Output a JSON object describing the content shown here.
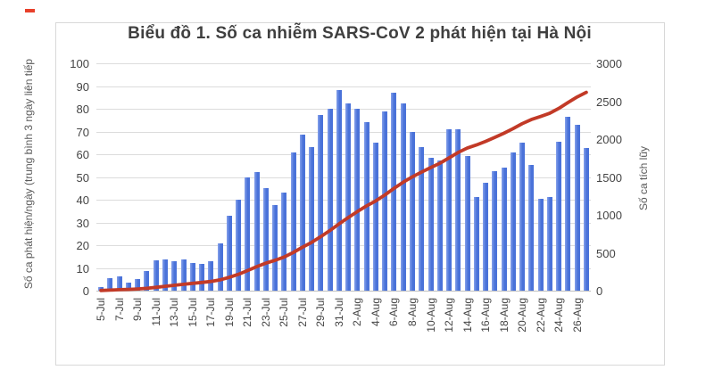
{
  "page": {
    "background": "#ffffff",
    "artifact_color": "#e8402a"
  },
  "chart_data": {
    "type": "combo",
    "title": "Biểu đồ 1. Số ca nhiễm SARS-CoV 2 phát hiện tại Hà Nội",
    "categories": [
      "5-Jul",
      "6-Jul",
      "7-Jul",
      "8-Jul",
      "9-Jul",
      "10-Jul",
      "11-Jul",
      "12-Jul",
      "13-Jul",
      "14-Jul",
      "15-Jul",
      "16-Jul",
      "17-Jul",
      "18-Jul",
      "19-Jul",
      "20-Jul",
      "21-Jul",
      "22-Jul",
      "23-Jul",
      "24-Jul",
      "25-Jul",
      "26-Jul",
      "27-Jul",
      "28-Jul",
      "29-Jul",
      "30-Jul",
      "31-Jul",
      "1-Aug",
      "2-Aug",
      "3-Aug",
      "4-Aug",
      "5-Aug",
      "6-Aug",
      "7-Aug",
      "8-Aug",
      "9-Aug",
      "10-Aug",
      "11-Aug",
      "12-Aug",
      "13-Aug",
      "14-Aug",
      "15-Aug",
      "16-Aug",
      "17-Aug",
      "18-Aug",
      "19-Aug",
      "20-Aug",
      "21-Aug",
      "22-Aug",
      "23-Aug",
      "24-Aug",
      "25-Aug",
      "26-Aug",
      "27-Aug"
    ],
    "x_tick_labels": [
      "5-Jul",
      "7-Jul",
      "9-Jul",
      "11-Jul",
      "13-Jul",
      "15-Jul",
      "17-Jul",
      "19-Jul",
      "21-Jul",
      "23-Jul",
      "25-Jul",
      "27-Jul",
      "29-Jul",
      "31-Jul",
      "2-Aug",
      "4-Aug",
      "6-Aug",
      "8-Aug",
      "10-Aug",
      "12-Aug",
      "14-Aug",
      "16-Aug",
      "18-Aug",
      "20-Aug",
      "22-Aug",
      "24-Aug",
      "26-Aug"
    ],
    "x_tick_every": 2,
    "series": [
      {
        "name": "Số ca phát hiện/ngày",
        "type": "bar",
        "axis": "left",
        "color": "#4a72d9",
        "highlight": "#86a1eb",
        "values": [
          1.5,
          5.5,
          6.3,
          3.7,
          5.0,
          8.7,
          13.3,
          13.7,
          13.0,
          13.7,
          12.0,
          11.7,
          13.0,
          20.7,
          33.0,
          40.0,
          50.0,
          52.3,
          45.3,
          37.7,
          43.3,
          60.7,
          68.7,
          63.0,
          77.3,
          80.0,
          88.3,
          82.3,
          80.0,
          74.3,
          65.3,
          78.7,
          87.0,
          82.3,
          70.0,
          63.0,
          58.3,
          57.3,
          71.0,
          71.0,
          59.3,
          41.0,
          47.3,
          52.7,
          54.3,
          61.0,
          65.3,
          55.3,
          40.3,
          41.3,
          65.7,
          76.3,
          73.0,
          62.7
        ]
      },
      {
        "name": "Số ca tích lũy",
        "type": "line",
        "axis": "right",
        "color": "#c23a27",
        "values": [
          2,
          7,
          13,
          17,
          22,
          31,
          44,
          58,
          71,
          84,
          96,
          108,
          121,
          142,
          175,
          215,
          265,
          317,
          362,
          400,
          443,
          504,
          573,
          636,
          713,
          793,
          881,
          964,
          1044,
          1118,
          1183,
          1262,
          1349,
          1431,
          1501,
          1564,
          1623,
          1680,
          1751,
          1822,
          1881,
          1922,
          1970,
          2022,
          2077,
          2138,
          2203,
          2258,
          2298,
          2340,
          2405,
          2482,
          2555,
          2617
        ]
      }
    ],
    "left_axis": {
      "label": "Số ca phát hiện/ngày (trung bình 3 ngày liên tiếp",
      "min": 0,
      "max": 100,
      "step": 10,
      "ticks": [
        0,
        10,
        20,
        30,
        40,
        50,
        60,
        70,
        80,
        90,
        100
      ]
    },
    "right_axis": {
      "label": "Số ca tích lũy",
      "min": 0,
      "max": 3000,
      "step": 500,
      "ticks": [
        0,
        500,
        1000,
        1500,
        2000,
        2500,
        3000
      ]
    },
    "grid": true,
    "legend": "none"
  }
}
